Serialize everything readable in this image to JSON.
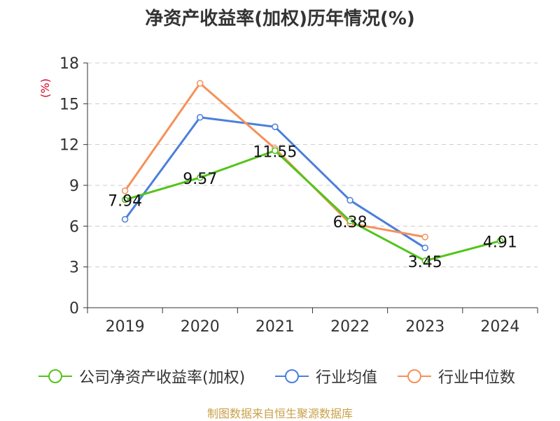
{
  "chart_data": {
    "type": "line",
    "title": "净资产收益率(加权)历年情况(%)",
    "ylabel": "(%)",
    "xlabel": "",
    "categories": [
      "2019",
      "2020",
      "2021",
      "2022",
      "2023",
      "2024"
    ],
    "ylim": [
      0,
      18
    ],
    "yticks": [
      0,
      3,
      6,
      9,
      12,
      15,
      18
    ],
    "grid": true,
    "legend_position": "bottom",
    "series": [
      {
        "name": "公司净资产收益率(加权)",
        "color": "#52c41a",
        "values": [
          7.94,
          9.57,
          11.55,
          6.38,
          3.45,
          4.91
        ],
        "labels": [
          "7.94",
          "9.57",
          "11.55",
          "6.38",
          "3.45",
          "4.91"
        ]
      },
      {
        "name": "行业均值",
        "color": "#4a7fdc",
        "values": [
          6.5,
          14.0,
          13.3,
          7.9,
          4.4,
          null
        ]
      },
      {
        "name": "行业中位数",
        "color": "#f5915a",
        "values": [
          8.6,
          16.5,
          11.7,
          6.2,
          5.2,
          null
        ]
      }
    ]
  },
  "source_note": "制图数据来自恒生聚源数据库"
}
